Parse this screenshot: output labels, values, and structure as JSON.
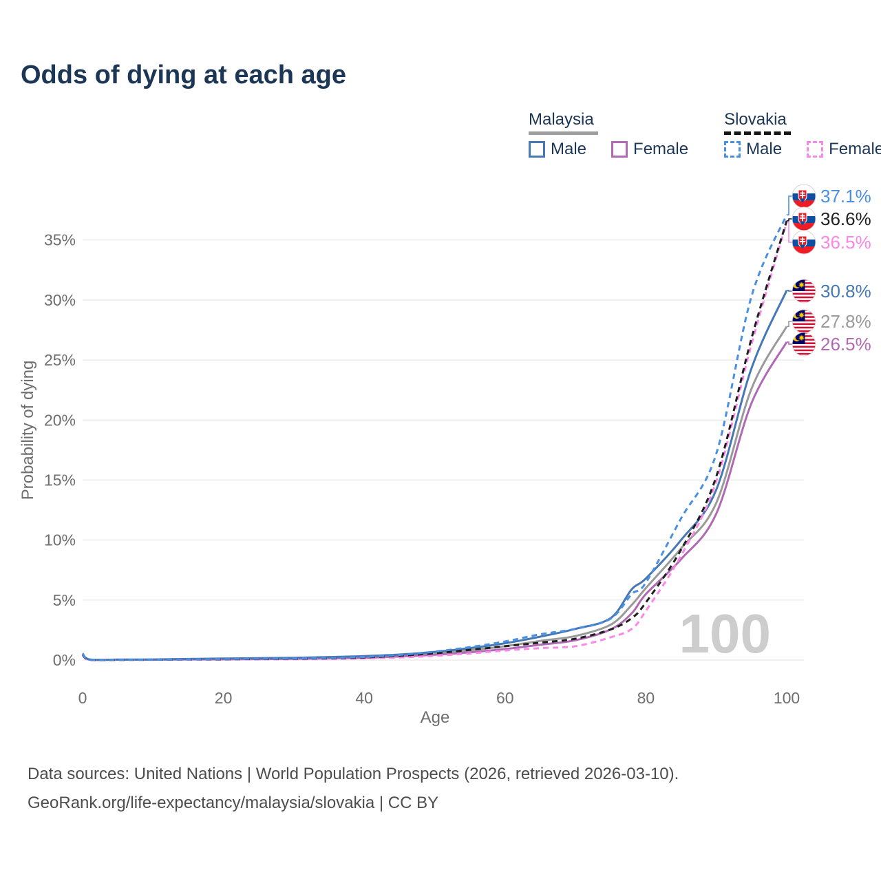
{
  "title": {
    "text": "Odds of dying at each age",
    "color": "#1c3656"
  },
  "legend": {
    "groups": [
      {
        "name": "Malaysia",
        "line_style": "solid",
        "underline_color": "#9e9e9e",
        "items": [
          {
            "label": "Male",
            "color": "#4678b4"
          },
          {
            "label": "Female",
            "color": "#b06ab3"
          }
        ]
      },
      {
        "name": "Slovakia",
        "line_style": "dashed",
        "underline_color": "#141414",
        "items": [
          {
            "label": "Male",
            "color": "#4a90e2"
          },
          {
            "label": "Female",
            "color": "#fb87e7"
          }
        ]
      }
    ]
  },
  "chart_data": {
    "type": "line",
    "title": "Odds of dying at each age",
    "xlabel": "Age",
    "ylabel": "Probability of dying",
    "xlim": [
      0,
      100
    ],
    "ylim": [
      0,
      38.5
    ],
    "x_ticks": [
      0,
      20,
      40,
      60,
      80,
      100
    ],
    "y_ticks": [
      0,
      5,
      10,
      15,
      20,
      25,
      30,
      35
    ],
    "y_tick_suffix": "%",
    "grid": "horizontal",
    "grid_color": "#ebebeb",
    "tick_color": "#6e6e6e",
    "watermark": "100",
    "watermark_color": "#cdcdcd",
    "ages": [
      0,
      1,
      5,
      10,
      15,
      20,
      25,
      30,
      35,
      40,
      45,
      50,
      55,
      60,
      65,
      70,
      75,
      78,
      80,
      85,
      90,
      95,
      100
    ],
    "series": [
      {
        "id": "slovakia-male",
        "country": "Slovakia",
        "sex": "male",
        "style": "dashed",
        "color": "#4a90e2",
        "flag": "sk",
        "end_label": "37.1%",
        "end_value": 37.1,
        "values": [
          0.5,
          0.04,
          0.03,
          0.03,
          0.06,
          0.09,
          0.11,
          0.13,
          0.18,
          0.26,
          0.43,
          0.7,
          1.08,
          1.55,
          2.15,
          2.6,
          3.45,
          5.5,
          6.45,
          11.8,
          17.2,
          30.3,
          37.1
        ]
      },
      {
        "id": "slovakia-both",
        "country": "Slovakia",
        "sex": "both",
        "style": "dashed",
        "color": "#1f1f1f",
        "flag": "sk",
        "end_label": "36.6%",
        "end_value": 36.6,
        "values": [
          0.45,
          0.03,
          0.02,
          0.03,
          0.05,
          0.07,
          0.09,
          0.11,
          0.15,
          0.22,
          0.36,
          0.56,
          0.85,
          1.15,
          1.45,
          1.78,
          2.55,
          3.5,
          4.8,
          9.2,
          15.3,
          26.8,
          36.6
        ]
      },
      {
        "id": "slovakia-female",
        "country": "Slovakia",
        "sex": "female",
        "style": "dashed",
        "color": "#fb87e7",
        "flag": "sk",
        "end_label": "36.5%",
        "end_value": 36.5,
        "values": [
          0.4,
          0.03,
          0.02,
          0.02,
          0.03,
          0.04,
          0.05,
          0.07,
          0.09,
          0.14,
          0.22,
          0.35,
          0.55,
          0.8,
          1.0,
          1.15,
          1.9,
          2.6,
          4.1,
          8.7,
          14.9,
          26.3,
          36.5
        ]
      },
      {
        "id": "malaysia-male",
        "country": "Malaysia",
        "sex": "male",
        "style": "solid",
        "color": "#4678b4",
        "flag": "my",
        "end_label": "30.8%",
        "end_value": 30.8,
        "values": [
          0.55,
          0.05,
          0.04,
          0.05,
          0.09,
          0.13,
          0.16,
          0.19,
          0.25,
          0.33,
          0.46,
          0.68,
          1.0,
          1.4,
          1.95,
          2.6,
          3.5,
          5.9,
          6.8,
          10.0,
          14.2,
          24.3,
          30.8
        ]
      },
      {
        "id": "malaysia-both",
        "country": "Malaysia",
        "sex": "both",
        "style": "solid",
        "color": "#9a9a9a",
        "flag": "my",
        "end_label": "27.8%",
        "end_value": 27.8,
        "values": [
          0.48,
          0.04,
          0.03,
          0.04,
          0.07,
          0.1,
          0.12,
          0.15,
          0.19,
          0.26,
          0.38,
          0.56,
          0.82,
          1.15,
          1.6,
          2.0,
          2.95,
          4.6,
          6.0,
          9.3,
          13.1,
          22.6,
          27.8
        ]
      },
      {
        "id": "malaysia-female",
        "country": "Malaysia",
        "sex": "female",
        "style": "solid",
        "color": "#b06ab3",
        "flag": "my",
        "end_label": "26.5%",
        "end_value": 26.5,
        "values": [
          0.42,
          0.04,
          0.03,
          0.03,
          0.05,
          0.06,
          0.08,
          0.1,
          0.14,
          0.19,
          0.29,
          0.44,
          0.65,
          0.92,
          1.28,
          1.65,
          2.55,
          3.9,
          5.5,
          8.4,
          12.2,
          21.4,
          26.5
        ]
      }
    ]
  },
  "footer": {
    "line1": "Data sources: United Nations | World Population Prospects (2026, retrieved 2026-03-10).",
    "line2": "GeoRank.org/life-expectancy/malaysia/slovakia | CC BY"
  }
}
